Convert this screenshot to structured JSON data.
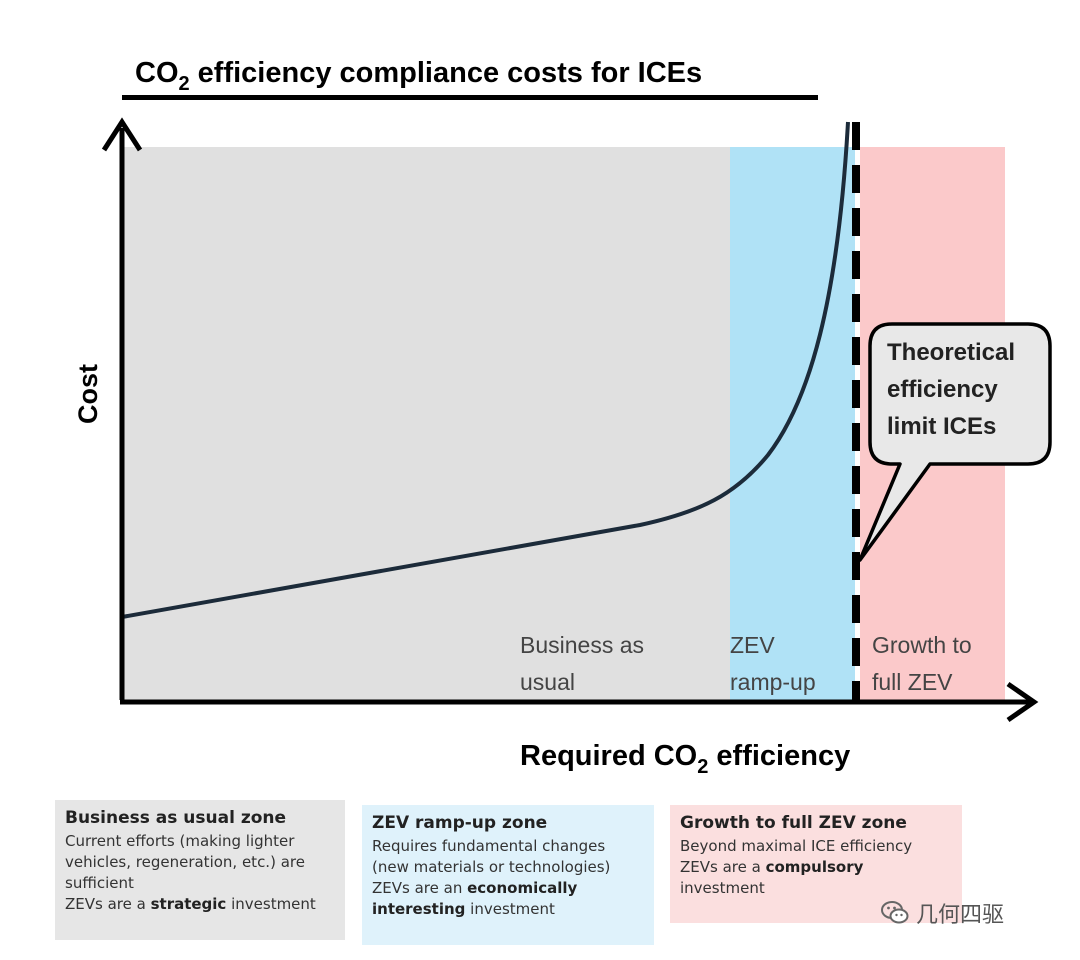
{
  "title": {
    "prefix": "CO",
    "sub": "2",
    "suffix": " efficiency compliance costs for ICEs"
  },
  "y_axis_label": "Cost",
  "x_axis_label": {
    "prefix": "Required CO",
    "sub": "2",
    "suffix": " efficiency"
  },
  "zones": [
    {
      "id": "bau",
      "label_lines": [
        "Business as",
        "usual"
      ],
      "color": "#e0e0e0"
    },
    {
      "id": "ramp",
      "label_lines": [
        "ZEV",
        "ramp-up"
      ],
      "color": "#b0e2f6"
    },
    {
      "id": "full",
      "label_lines": [
        "Growth to",
        "full ZEV"
      ],
      "color": "#fbc9ca"
    }
  ],
  "callout": {
    "lines": [
      "Theoretical",
      "efficiency",
      "limit ICEs"
    ]
  },
  "colors": {
    "curve": "#1c2b3a",
    "axis": "#000000",
    "callout_fill": "#e8e8e8"
  },
  "boxes": {
    "bau": {
      "heading": "Business as usual zone",
      "line1": "Current efforts (making lighter",
      "line2": "vehicles, regeneration, etc.) are",
      "line3": "sufficient",
      "line4_pre": "ZEVs are a ",
      "line4_bold": "strategic",
      "line4_post": " investment"
    },
    "ramp": {
      "heading": "ZEV ramp-up zone",
      "line1": "Requires fundamental changes",
      "line2": "(new materials or technologies)",
      "line3_pre": "ZEVs are an ",
      "line3_bold": "economically",
      "line4_bold": "interesting",
      "line4_post": " investment"
    },
    "full": {
      "heading": "Growth to full ZEV zone",
      "line1": "Beyond maximal ICE efficiency",
      "line2_pre": "ZEVs are a ",
      "line2_bold": "compulsory",
      "line3": "investment"
    }
  },
  "watermark": {
    "text": "几何四驱",
    "icon": "wechat-icon"
  }
}
